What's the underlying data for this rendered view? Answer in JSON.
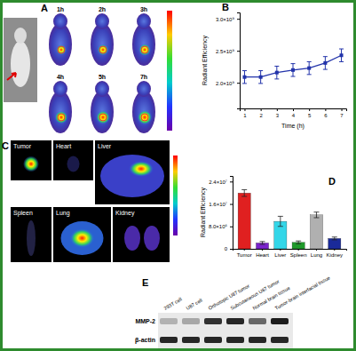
{
  "chart_data": [
    {
      "type": "line",
      "x_label": "Time (h)",
      "y_label": "Radiant Efficiency",
      "x": [
        1,
        2,
        3,
        4,
        5,
        6,
        7
      ],
      "values": [
        2090000000,
        2090000000,
        2160000000,
        2200000000,
        2230000000,
        2310000000,
        2430000000
      ],
      "errors": [
        100000000,
        100000000,
        100000000,
        100000000,
        100000000,
        100000000,
        100000000
      ],
      "color": "#2233aa",
      "marker": "square",
      "xlim": [
        0.7,
        7.3
      ],
      "xticks": [
        1,
        2,
        3,
        4,
        5,
        6,
        7
      ],
      "ylim": [
        1600000000,
        3100000000
      ],
      "yticks": [
        {
          "value": 2000000000,
          "label": "2.0×10⁹"
        },
        {
          "value": 2500000000,
          "label": "2.5×10⁹"
        },
        {
          "value": 3000000000,
          "label": "3.0×10⁹"
        }
      ]
    },
    {
      "type": "bar",
      "y_label": "Radiant Efficiency",
      "categories": [
        "Tumor",
        "Heart",
        "Liver",
        "Spleen",
        "Lung",
        "Kidney"
      ],
      "values": [
        19900000,
        2100000,
        9800000,
        2300000,
        12100000,
        3700000
      ],
      "errors": [
        1200000,
        500000,
        1800000,
        500000,
        1000000,
        500000
      ],
      "colors": [
        "#e02020",
        "#7a22cc",
        "#33d6e8",
        "#1f9a2a",
        "#b0b0b0",
        "#1a2a9a"
      ],
      "ylim": [
        0,
        26000000
      ],
      "yticks": [
        0,
        {
          "value": 8000000,
          "label": "8.0×10⁶"
        },
        {
          "value": 16000000,
          "label": "1.6×10⁷"
        },
        {
          "value": 24000000,
          "label": "2.4×10⁷"
        }
      ]
    }
  ],
  "figure": {
    "panel_labels": [
      "A",
      "B",
      "C",
      "D",
      "E"
    ],
    "timepoints": [
      "1h",
      "2h",
      "3h",
      "4h",
      "5h",
      "7h"
    ],
    "organs": [
      "Tumor",
      "Heart",
      "Liver",
      "Spleen",
      "Lung",
      "Kidney"
    ],
    "blot": {
      "lanes": [
        "293T cell",
        "U87 cell",
        "Orthotopic U87 tumor",
        "Subcutaneous U87 tumor",
        "Normal brain tissue",
        "Tumor-brain interfacial tissue"
      ],
      "rows": [
        "MMP-2",
        "β-actin"
      ]
    }
  }
}
